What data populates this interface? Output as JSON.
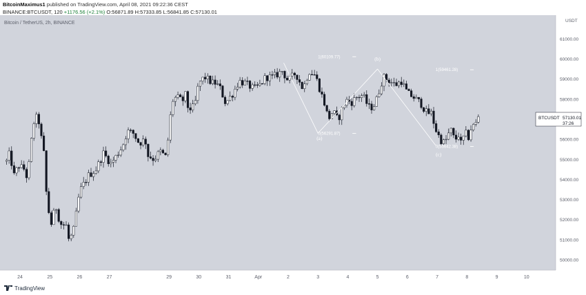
{
  "header": {
    "author": "BitcoinMaximus1",
    "published_text": "published on TradingView.com, April 08, 2021 09:22:36 CEST",
    "symbol": "BINANCE:BTCUSDT, 120",
    "change": "+1176.56 (+2.1%)",
    "ohlc": "O:56871.89 H:57333.85 L:56841.85 C:57130.01"
  },
  "chart_title": "Bitcoin / TetherUS, 2h, BINANCE",
  "price_tag": {
    "symbol": "BTCUSDT",
    "price": "57130.01",
    "countdown": "37:26"
  },
  "footer": {
    "logo_text": "TradingView"
  },
  "colors": {
    "background": "#d1d4dc",
    "candle": "#131722",
    "fib_line": "#ffffff",
    "wave_line": "#ffffff"
  },
  "chart_data": {
    "type": "candlestick",
    "title": "Bitcoin / TetherUS, 2h, BINANCE",
    "y_axis_label": "USDT",
    "ylim": [
      49700,
      62000
    ],
    "y_ticks": [
      50000,
      51000,
      52000,
      53000,
      54000,
      55000,
      56000,
      57000,
      58000,
      59000,
      60000,
      61000
    ],
    "y_tick_labels": [
      "50000.00",
      "51000.00",
      "52000.00",
      "53000.00",
      "54000.00",
      "55000.00",
      "56000.00",
      "57000.00",
      "58000.00",
      "59000.00",
      "60000.00",
      "61000.00"
    ],
    "x_tick_labels": [
      "24",
      "25",
      "26",
      "27",
      "29",
      "30",
      "31",
      "Apr",
      "2",
      "3",
      "4",
      "5",
      "6",
      "7",
      "8",
      "9",
      "10"
    ],
    "x_tick_days": [
      0,
      1,
      2,
      3,
      5,
      6,
      7,
      8,
      9,
      10,
      11,
      12,
      13,
      14,
      15,
      16,
      17
    ],
    "close_path_days": [
      -0.45,
      -0.35,
      -0.2,
      -0.05,
      0.15,
      0.25,
      0.35,
      0.45,
      0.6,
      0.7,
      0.8,
      0.85,
      0.95,
      1.05,
      1.2,
      1.35,
      1.55,
      1.65,
      1.8,
      1.95,
      2.0,
      2.15,
      2.3,
      2.55,
      2.8,
      3.05,
      3.25,
      3.45,
      3.6,
      3.8,
      4.0,
      4.2,
      4.3,
      4.5,
      4.7,
      4.9,
      5.0,
      5.1,
      5.25,
      5.45,
      5.55,
      5.65,
      5.85,
      6.0,
      6.2,
      6.45,
      6.55,
      6.7,
      6.9,
      7.15,
      7.35,
      7.55,
      7.85,
      8.05,
      8.25,
      8.5,
      8.8,
      9.0,
      9.25,
      9.5,
      9.7,
      9.9,
      10.0,
      10.1,
      10.2,
      10.35,
      10.5,
      10.65,
      10.75,
      10.85,
      11.0,
      11.1,
      11.3,
      11.5,
      11.7,
      11.85,
      12.0,
      12.1,
      12.2,
      12.4,
      12.6,
      12.8,
      13.0,
      13.2,
      13.45,
      13.65,
      13.8,
      13.95,
      14.1,
      14.25,
      14.45,
      14.6,
      14.7,
      14.8,
      14.95,
      15.05,
      15.15,
      15.25,
      15.35,
      15.45
    ],
    "close_path_prices": [
      54900,
      55300,
      54200,
      54700,
      54500,
      54000,
      55500,
      56800,
      57200,
      56200,
      55300,
      53800,
      52500,
      51800,
      52700,
      51800,
      51700,
      50900,
      51500,
      52900,
      53400,
      53800,
      54200,
      54500,
      55300,
      54800,
      55200,
      55700,
      56400,
      56300,
      55800,
      56000,
      55200,
      55000,
      55400,
      55100,
      56400,
      57900,
      58100,
      57900,
      58200,
      57500,
      57600,
      58800,
      59100,
      58800,
      58800,
      58600,
      57800,
      58300,
      58900,
      58800,
      58500,
      58700,
      59100,
      59100,
      59400,
      58900,
      59300,
      58500,
      59400,
      59200,
      58800,
      58300,
      57900,
      57000,
      57400,
      57000,
      57200,
      57700,
      58000,
      57800,
      58100,
      58200,
      57600,
      57600,
      58100,
      58700,
      59100,
      58900,
      58700,
      58900,
      58300,
      58100,
      57800,
      57300,
      57300,
      56500,
      56000,
      55800,
      56500,
      55900,
      56300,
      55800,
      56300,
      56100,
      56600,
      56700,
      56900,
      57130
    ],
    "wave_line": [
      {
        "day": 8.85,
        "price": 59800
      },
      {
        "day": 10.0,
        "price": 56300
      },
      {
        "day": 12.0,
        "price": 59500
      },
      {
        "day": 13.95,
        "price": 55700
      }
    ],
    "fib_levels": [
      {
        "label": "1(60109.77)",
        "price": 60109.77,
        "day_start": 10.0,
        "day_end": 11.0
      },
      {
        "label": "0(56291.87)",
        "price": 56291.87,
        "day_start": 10.0,
        "day_end": 11.0
      },
      {
        "label": "1(59461.28)",
        "price": 59461.28,
        "day_start": 13.95,
        "day_end": 14.95
      },
      {
        "label": "0(55642.38)",
        "price": 55642.38,
        "day_start": 13.95,
        "day_end": 14.95
      }
    ],
    "wave_labels": [
      {
        "text": "(a)",
        "day": 10.05,
        "price": 55970
      },
      {
        "text": "(b)",
        "day": 12.0,
        "price": 59920
      },
      {
        "text": "(c)",
        "day": 14.05,
        "price": 55170
      }
    ]
  }
}
